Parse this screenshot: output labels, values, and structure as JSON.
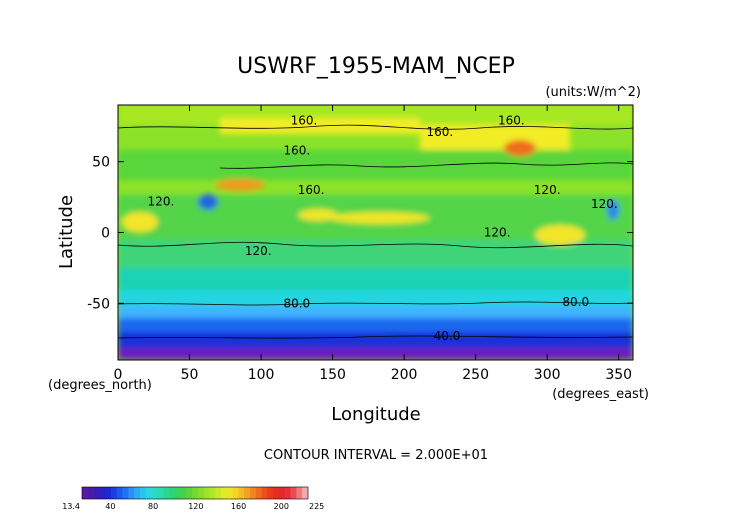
{
  "chart_data": {
    "type": "heatmap",
    "title": "USWRF_1955-MAM_NCEP",
    "units": "(units:W/m^2)",
    "xlabel": "Longitude",
    "ylabel": "Latitude",
    "x_unit_label": "(degrees_east)",
    "y_unit_label": "(degrees_north)",
    "xlim": [
      0,
      360
    ],
    "ylim": [
      -90,
      90
    ],
    "x_ticks": [
      0,
      50,
      100,
      150,
      200,
      250,
      300,
      350
    ],
    "y_ticks": [
      -50,
      0,
      50
    ],
    "contour_interval_text": "CONTOUR INTERVAL = 2.000E+01",
    "contour_labels": [
      {
        "text": "160.",
        "lon": 130,
        "lat": 79
      },
      {
        "text": "160.",
        "lon": 225,
        "lat": 71
      },
      {
        "text": "160.",
        "lon": 275,
        "lat": 79
      },
      {
        "text": "160.",
        "lon": 125,
        "lat": 58
      },
      {
        "text": "160.",
        "lon": 135,
        "lat": 30
      },
      {
        "text": "120.",
        "lon": 30,
        "lat": 22
      },
      {
        "text": "120.",
        "lon": 265,
        "lat": 0
      },
      {
        "text": "120.",
        "lon": 300,
        "lat": 30
      },
      {
        "text": "120.",
        "lon": 340,
        "lat": 20
      },
      {
        "text": "120.",
        "lon": 98,
        "lat": -13
      },
      {
        "text": "80.0",
        "lon": 125,
        "lat": -50
      },
      {
        "text": "80.0",
        "lon": 320,
        "lat": -49
      },
      {
        "text": "40.0",
        "lon": 230,
        "lat": -73
      }
    ],
    "colorbar": {
      "min_label": "13.4",
      "max_label": "225",
      "labels": [
        "13.4",
        "40",
        "80",
        "120",
        "160",
        "200",
        "225"
      ],
      "range": [
        13.4,
        225
      ]
    }
  }
}
